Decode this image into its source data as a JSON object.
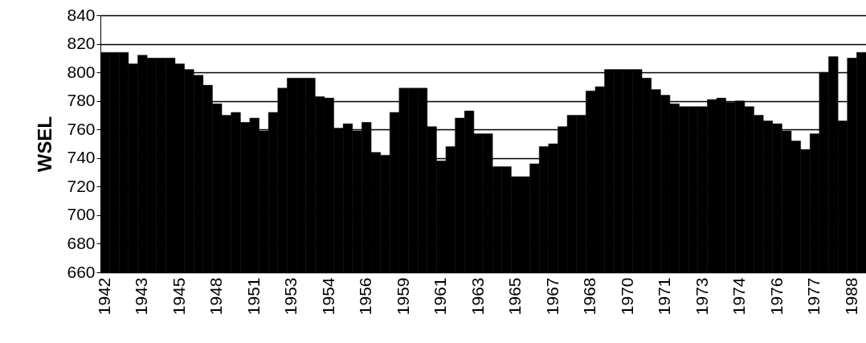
{
  "chart_data": {
    "type": "bar",
    "ylabel": "WSEL",
    "color": "#000000",
    "grid": "y",
    "categories": [
      "1942",
      null,
      null,
      null,
      "1943",
      null,
      null,
      null,
      "1945",
      null,
      null,
      null,
      "1948",
      null,
      null,
      null,
      "1951",
      null,
      null,
      null,
      "1953",
      null,
      null,
      null,
      "1954",
      null,
      null,
      null,
      "1956",
      null,
      null,
      null,
      "1959",
      null,
      null,
      null,
      "1961",
      null,
      null,
      null,
      "1963",
      null,
      null,
      null,
      "1965",
      null,
      null,
      null,
      "1967",
      null,
      null,
      null,
      "1968",
      null,
      null,
      null,
      "1970",
      null,
      null,
      null,
      "1971",
      null,
      null,
      null,
      "1973",
      null,
      null,
      null,
      "1974",
      null,
      null,
      null,
      "1976",
      null,
      null,
      null,
      "1977",
      null,
      null,
      null,
      "1988",
      null
    ],
    "values": [
      814,
      814,
      814,
      806,
      812,
      810,
      810,
      810,
      806,
      802,
      798,
      791,
      778,
      770,
      772,
      765,
      768,
      759,
      772,
      789,
      796,
      796,
      796,
      783,
      782,
      761,
      764,
      759,
      765,
      744,
      742,
      772,
      789,
      789,
      789,
      762,
      738,
      748,
      768,
      773,
      757,
      757,
      734,
      734,
      727,
      727,
      736,
      748,
      750,
      762,
      770,
      770,
      787,
      790,
      802,
      802,
      802,
      802,
      796,
      788,
      784,
      778,
      776,
      776,
      776,
      781,
      782,
      779,
      780,
      776,
      770,
      766,
      764,
      759,
      752,
      746,
      757,
      800,
      811,
      766,
      810,
      814
    ],
    "ylim": [
      660,
      840
    ],
    "yticks": [
      660,
      680,
      700,
      720,
      740,
      760,
      780,
      800,
      820,
      840
    ]
  }
}
